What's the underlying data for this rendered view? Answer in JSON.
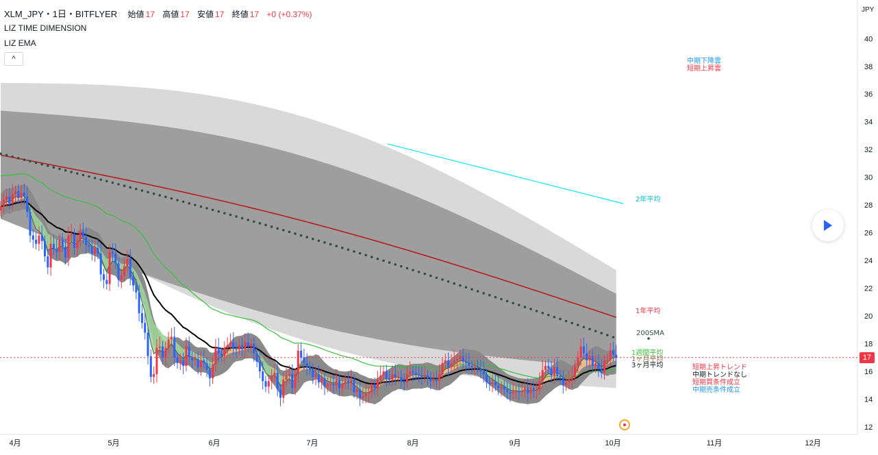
{
  "header": {
    "symbol": "XLM_JPY・1日・BITFLYER",
    "open_label": "始値",
    "open_value": "17",
    "high_label": "高値",
    "high_value": "17",
    "low_label": "安値",
    "low_value": "17",
    "close_label": "終値",
    "close_value": "17",
    "change": "+0 (+0.37%)"
  },
  "indicators": [
    "LIZ TIME DIMENSION",
    "LIZ EMA"
  ],
  "collapse_glyph": "^",
  "currency": "JPY",
  "price_tag": "17",
  "icons": {
    "play": "play-icon",
    "collapse": "chevron-up-icon",
    "marker": "event-marker-icon"
  },
  "colors": {
    "up": "#f23645",
    "down": "#2962ff",
    "ma1y": "#b71c1c",
    "ma2y": "#00e5ff",
    "green_ma": "#35c235",
    "black_ma": "#000000",
    "sma200": "#2e4f45"
  },
  "chart_data": {
    "type": "candlestick",
    "title": "",
    "y_axis": {
      "ticks": [
        12,
        14,
        16,
        18,
        20,
        22,
        24,
        26,
        28,
        30,
        32,
        34,
        36,
        38,
        40
      ],
      "range": [
        11.2,
        41.6
      ]
    },
    "x_axis": {
      "ticks": [
        "4月",
        "5月",
        "6月",
        "7月",
        "8月",
        "9月",
        "10月",
        "11月",
        "12月"
      ]
    },
    "last_price": 17,
    "annotations": {
      "ma2y": "2年平均",
      "ma1y": "1年平均",
      "sma200": "200SMA",
      "ma_short_1": "1週間平均",
      "ma_short_2": "1ヶ月平均",
      "ma_short_3": "3ヶ月平均",
      "cloud_1": "中期下降雲",
      "cloud_2": "短期上昇雲",
      "status": [
        "短期上昇トレンド",
        "中期トレンドなし",
        "短期買条件成立",
        "中期売条件成立"
      ]
    },
    "close": [
      27.9,
      28.4,
      28.6,
      28.1,
      28.8,
      29.0,
      28.5,
      28.9,
      28.6,
      27.5,
      25.8,
      25.5,
      25.2,
      25.8,
      25.4,
      24.3,
      23.5,
      25.2,
      24.8,
      24.6,
      25.5,
      25.0,
      24.2,
      25.8,
      25.9,
      24.9,
      25.4,
      26.1,
      25.7,
      25.1,
      25.0,
      24.5,
      24.9,
      24.5,
      23.0,
      22.6,
      22.3,
      24.6,
      24.5,
      23.8,
      22.6,
      22.9,
      23.6,
      24.1,
      22.8,
      22.2,
      21.7,
      20.2,
      19.5,
      18.8,
      17.1,
      15.6,
      15.8,
      17.7,
      17.8,
      17.0,
      17.7,
      18.3,
      18.5,
      17.0,
      16.6,
      16.8,
      16.4,
      17.8,
      17.0,
      16.8,
      16.9,
      16.3,
      16.8,
      16.6,
      16.1,
      15.5,
      16.5,
      17.7,
      17.3,
      17.1,
      17.7,
      17.9,
      18.1,
      17.7,
      17.6,
      17.9,
      17.6,
      18.1,
      17.8,
      18.0,
      17.3,
      16.7,
      16.0,
      15.3,
      14.9,
      15.3,
      15.6,
      15.9,
      14.7,
      14.1,
      15.4,
      15.7,
      15.8,
      14.8,
      15.8,
      17.5,
      17.0,
      16.6,
      16.3,
      16.1,
      15.6,
      15.8,
      15.2,
      15.5,
      14.9,
      15.1,
      15.1,
      15.0,
      15.4,
      14.8,
      15.1,
      15.3,
      15.2,
      15.4,
      14.5,
      14.7,
      14.1,
      14.2,
      14.4,
      14.5,
      15.0,
      14.8,
      15.4,
      15.7,
      16.0,
      15.5,
      15.4,
      15.8,
      15.6,
      15.6,
      15.3,
      15.2,
      15.8,
      16.0,
      15.9,
      15.8,
      15.7,
      15.6,
      15.7,
      15.5,
      15.3,
      15.4,
      15.3,
      15.8,
      16.6,
      16.8,
      16.3,
      16.6,
      16.8,
      16.9,
      17.1,
      16.7,
      16.6,
      16.4,
      16.3,
      16.3,
      16.2,
      16.0,
      15.8,
      15.2,
      15.1,
      15.2,
      15.0,
      14.8,
      14.9,
      14.7,
      14.5,
      14.4,
      14.5,
      14.6,
      14.5,
      14.6,
      14.8,
      14.4,
      14.8,
      14.6,
      14.7,
      15.3,
      16.1,
      16.4,
      16.2,
      15.7,
      16.3,
      15.7,
      15.6,
      15.0,
      15.2,
      15.4,
      15.6,
      16.4,
      17.0,
      17.8,
      17.3,
      16.8,
      17.1,
      16.4,
      16.6,
      16.2,
      15.9,
      16.8,
      16.8,
      17.5,
      17.2,
      17.0
    ],
    "ma2y_line": {
      "label": "2年平均",
      "from": [
        32.4,
        "2023-07-27"
      ],
      "to": [
        28.1,
        "2023-10-07"
      ]
    },
    "ma1y_end": 19.9,
    "sma200_end": 18.4,
    "green_ma_end": 16.9,
    "black_ma_end": 15.9
  }
}
